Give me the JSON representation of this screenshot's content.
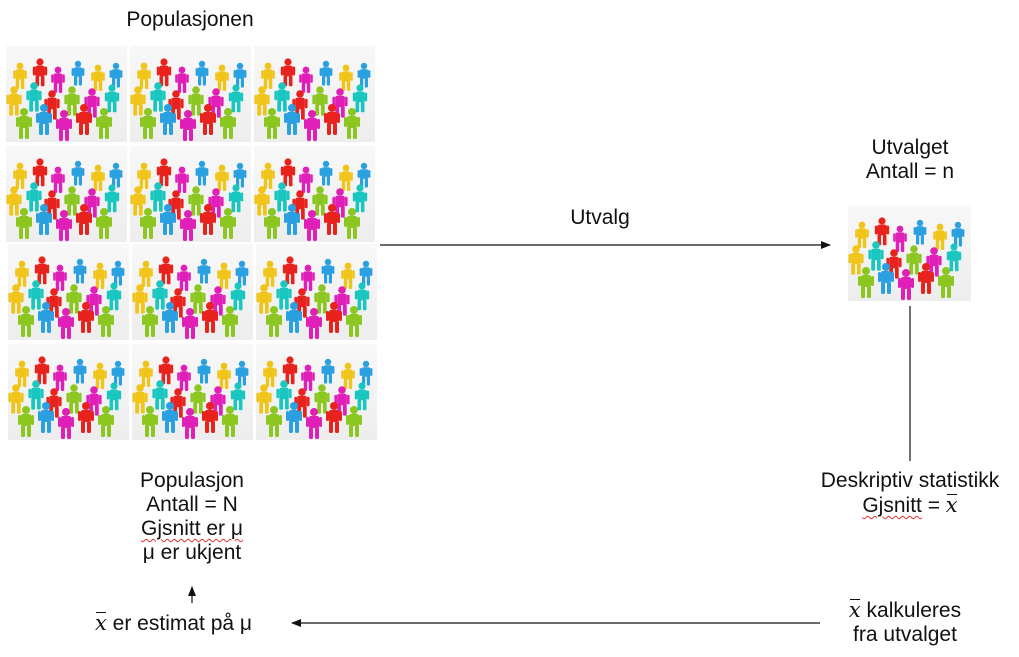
{
  "population": {
    "title": "Populasjonen",
    "label_lines": [
      "Populasjon",
      "Antall = N",
      "Gjsnitt er μ",
      "μ er ukjent"
    ]
  },
  "sampling": {
    "arrow_label": "Utvalg"
  },
  "sample": {
    "title_lines": [
      "Utvalget",
      "Antall = n"
    ]
  },
  "descriptive": {
    "line1": "Deskriptiv statistikk",
    "line2_word": "Gjsnitt",
    "line2_rest": " = ",
    "symbol": "x"
  },
  "calculated": {
    "symbol": "x",
    "line1_rest": " kalkuleres",
    "line2": "fra utvalget"
  },
  "estimate": {
    "symbol": "x",
    "rest": " er estimat på μ"
  },
  "colors": {
    "figures": [
      "#e8231e",
      "#2aa0e0",
      "#f0c418",
      "#e01fb8",
      "#8cc620",
      "#19c6c0"
    ],
    "arrow": "#111111",
    "spellcheck": "#e03030"
  }
}
